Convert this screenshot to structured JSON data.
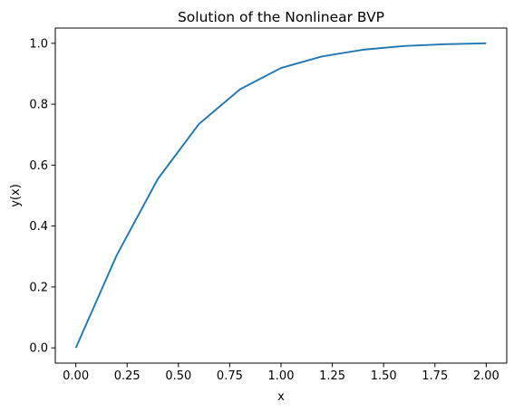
{
  "chart_data": {
    "type": "line",
    "title": "Solution of the Nonlinear BVP",
    "xlabel": "x",
    "ylabel": "y(x)",
    "xlim": [
      -0.1,
      2.1
    ],
    "ylim": [
      -0.05,
      1.05
    ],
    "xticks": [
      0.0,
      0.25,
      0.5,
      0.75,
      1.0,
      1.25,
      1.5,
      1.75,
      2.0
    ],
    "xtick_labels": [
      "0.00",
      "0.25",
      "0.50",
      "0.75",
      "1.00",
      "1.25",
      "1.50",
      "1.75",
      "2.00"
    ],
    "yticks": [
      0.0,
      0.2,
      0.4,
      0.6,
      0.8,
      1.0
    ],
    "ytick_labels": [
      "0.0",
      "0.2",
      "0.4",
      "0.6",
      "0.8",
      "1.0"
    ],
    "grid": false,
    "series": [
      {
        "color": "#1f77b4",
        "x": [
          0.0,
          0.2,
          0.4,
          0.6,
          0.8,
          1.0,
          1.2,
          1.4,
          1.6,
          1.8,
          2.0
        ],
        "y": [
          0.0,
          0.305,
          0.555,
          0.735,
          0.849,
          0.919,
          0.957,
          0.979,
          0.991,
          0.997,
          1.0
        ]
      }
    ]
  }
}
